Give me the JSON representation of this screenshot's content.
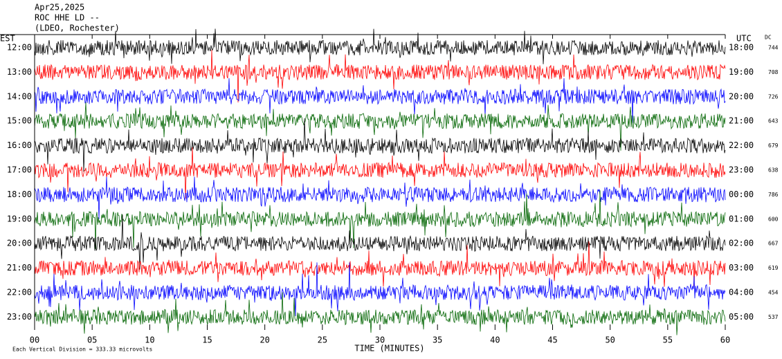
{
  "header": {
    "date": "Apr25,2025",
    "station": "ROC HHE LD --",
    "location": "(LDEO, Rochester)"
  },
  "chart_data": {
    "type": "helicorder",
    "left_label": "EST",
    "right_label": "UTC",
    "dc_label": "DC",
    "xlabel": "TIME (MINUTES)",
    "footer": "Each Vertical Division =  333.33 microvolts",
    "xlim": [
      0,
      60
    ],
    "xticks": [
      {
        "value": 0,
        "label": "00"
      },
      {
        "value": 5,
        "label": "05"
      },
      10,
      15,
      20,
      25,
      30,
      35,
      40,
      45,
      50,
      55,
      60
    ],
    "rows": [
      {
        "est": "12:00",
        "utc": "18:00",
        "dc": 744,
        "color": "#000000"
      },
      {
        "est": "13:00",
        "utc": "19:00",
        "dc": 708,
        "color": "#ff0000"
      },
      {
        "est": "14:00",
        "utc": "20:00",
        "dc": 726,
        "color": "#0000ff"
      },
      {
        "est": "15:00",
        "utc": "21:00",
        "dc": 643,
        "color": "#006400"
      },
      {
        "est": "16:00",
        "utc": "22:00",
        "dc": 679,
        "color": "#000000"
      },
      {
        "est": "17:00",
        "utc": "23:00",
        "dc": 638,
        "color": "#ff0000"
      },
      {
        "est": "18:00",
        "utc": "00:00",
        "dc": 786,
        "color": "#0000ff"
      },
      {
        "est": "19:00",
        "utc": "01:00",
        "dc": 600,
        "color": "#006400"
      },
      {
        "est": "20:00",
        "utc": "02:00",
        "dc": 667,
        "color": "#000000"
      },
      {
        "est": "21:00",
        "utc": "03:00",
        "dc": 619,
        "color": "#ff0000"
      },
      {
        "est": "22:00",
        "utc": "04:00",
        "dc": 454,
        "color": "#0000ff"
      },
      {
        "est": "23:00",
        "utc": "05:00",
        "dc": 537,
        "color": "#006400"
      }
    ]
  }
}
